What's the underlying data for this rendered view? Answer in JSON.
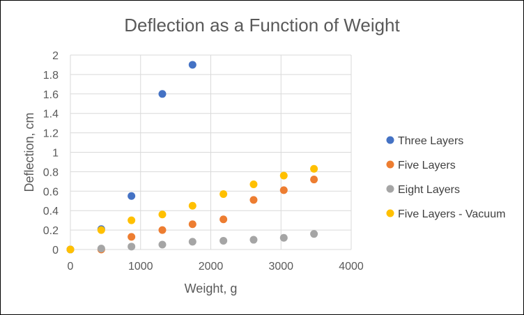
{
  "chart_data": {
    "type": "scatter",
    "title": "Deflection as a Function of Weight",
    "xlabel": "Weight, g",
    "ylabel": "Deflection, cm",
    "xlim": [
      0,
      4000
    ],
    "ylim": [
      0,
      2
    ],
    "xticks": [
      0,
      1000,
      2000,
      3000,
      4000
    ],
    "xtick_labels": [
      "0",
      "1000",
      "2000",
      "3000",
      "4000"
    ],
    "yticks": [
      0,
      0.2,
      0.4,
      0.6,
      0.8,
      1,
      1.2,
      1.4,
      1.6,
      1.8,
      2
    ],
    "ytick_labels": [
      "0",
      "0.2",
      "0.4",
      "0.6",
      "0.8",
      "1",
      "1.2",
      "1.4",
      "1.6",
      "1.8",
      "2"
    ],
    "grid": true,
    "legend_position": "right",
    "series": [
      {
        "name": "Three Layers",
        "color": "#4472C4",
        "x": [
          0,
          440,
          870,
          1310,
          1740
        ],
        "y": [
          0,
          0.21,
          0.55,
          1.6,
          1.9
        ]
      },
      {
        "name": "Five Layers",
        "color": "#ED7D31",
        "x": [
          0,
          440,
          870,
          1310,
          1740,
          2180,
          2610,
          3040,
          3470
        ],
        "y": [
          0,
          0,
          0.13,
          0.2,
          0.26,
          0.31,
          0.51,
          0.61,
          0.72
        ]
      },
      {
        "name": "Eight Layers",
        "color": "#A5A5A5",
        "x": [
          0,
          440,
          870,
          1310,
          1740,
          2180,
          2610,
          3040,
          3470
        ],
        "y": [
          0,
          0.01,
          0.03,
          0.05,
          0.08,
          0.09,
          0.1,
          0.12,
          0.16
        ]
      },
      {
        "name": "Five Layers - Vacuum",
        "color": "#FFC000",
        "x": [
          0,
          440,
          870,
          1310,
          1740,
          2180,
          2610,
          3040,
          3470
        ],
        "y": [
          0,
          0.2,
          0.3,
          0.36,
          0.45,
          0.57,
          0.67,
          0.76,
          0.83
        ]
      }
    ]
  }
}
